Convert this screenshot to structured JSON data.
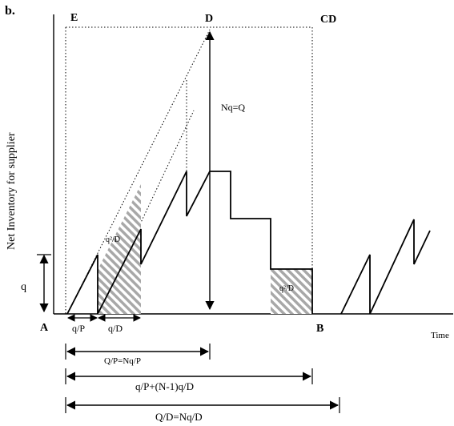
{
  "figure": {
    "panel_label": "b.",
    "y_axis_label": "Net Inventory for supplier",
    "x_axis_label": "Time",
    "points": {
      "A": "A",
      "B": "B",
      "D": "D",
      "E": "E",
      "CD": "CD"
    },
    "annotations": {
      "nq_q": "Nq=Q",
      "q": "q",
      "q_over_p": "q/P",
      "q_over_d": "q/D",
      "qp_np": "Q/P=Nq/P",
      "qp_nd": "q/P+(N-1)q/D",
      "qd_nd": "Q/D=Nq/D",
      "hatch_left": "q²/D",
      "hatch_right": "q²/D"
    }
  }
}
